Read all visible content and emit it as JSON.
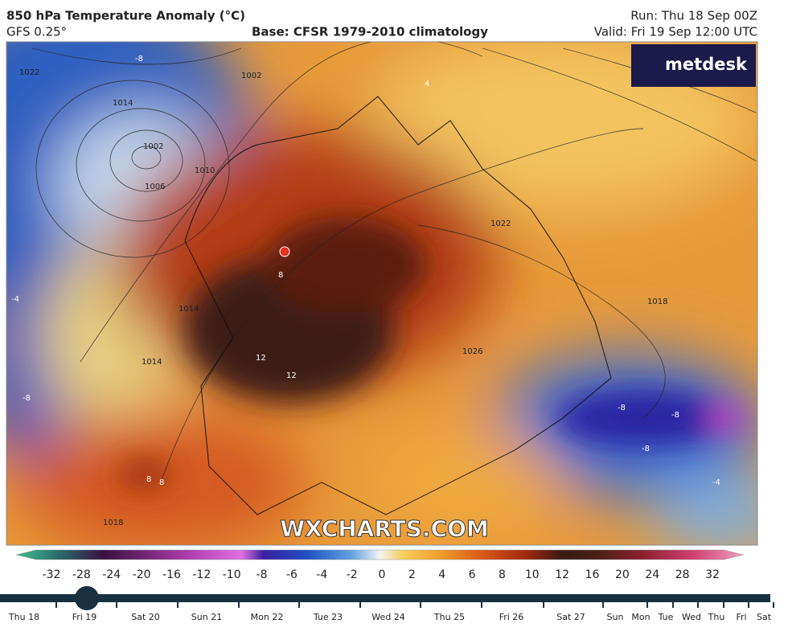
{
  "header": {
    "title": "850 hPa Temperature Anomaly (°C)",
    "model": "GFS 0.25°",
    "base": "Base: CFSR 1979-2010 climatology",
    "run": "Run: Thu 18 Sep 00Z",
    "valid": "Valid: Fri 19 Sep 12:00 UTC"
  },
  "logo": "metdesk",
  "watermark": "WXCHARTS.COM",
  "map": {
    "contour_labels": [
      "1022",
      "1002",
      "1014",
      "1002",
      "1006",
      "1010",
      "1014",
      "1014",
      "1022",
      "1018",
      "1026",
      "1018"
    ],
    "anomaly_labels": [
      "-8",
      "-4",
      "4",
      "8",
      "12",
      "12",
      "8",
      "8",
      "-8",
      "-8",
      "-8",
      "-8",
      "-4"
    ]
  },
  "colorbar": {
    "labels": [
      -32,
      -28,
      -24,
      -20,
      -16,
      -12,
      -10,
      -8,
      -6,
      -4,
      -2,
      0,
      2,
      4,
      6,
      8,
      10,
      12,
      16,
      20,
      24,
      28,
      32
    ]
  },
  "timeline": {
    "days": [
      "Thu 18",
      "Fri 19",
      "Sat 20",
      "Sun 21",
      "Mon 22",
      "Tue 23",
      "Wed 24",
      "Thu 25",
      "Fri 26",
      "Sat 27",
      "Sun",
      "Mon",
      "Tue",
      "Wed",
      "Thu",
      "Fri",
      "Sat"
    ]
  }
}
